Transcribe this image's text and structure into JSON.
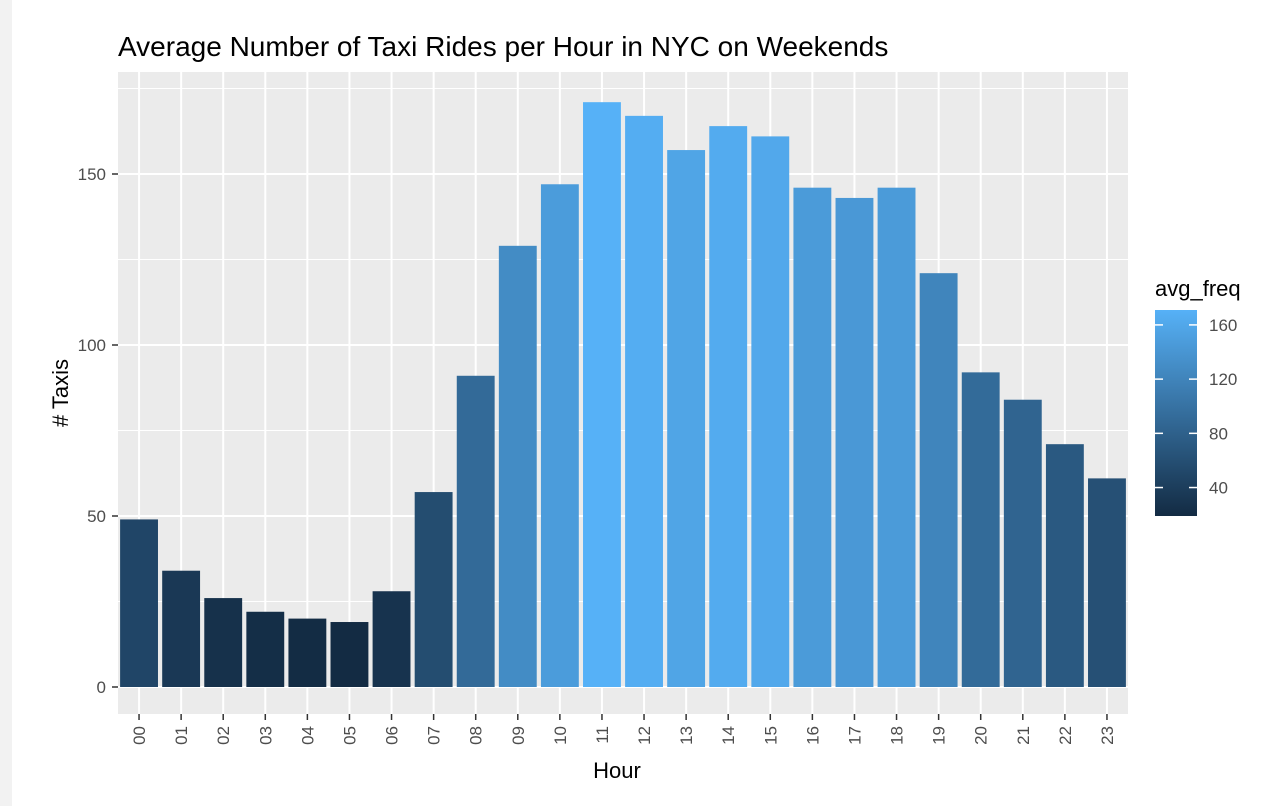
{
  "chart_data": {
    "type": "bar",
    "title": "Average Number of Taxi Rides per Hour in NYC on Weekends",
    "xlabel": "Hour",
    "ylabel": "# Taxis",
    "categories": [
      "00",
      "01",
      "02",
      "03",
      "04",
      "05",
      "06",
      "07",
      "08",
      "09",
      "10",
      "11",
      "12",
      "13",
      "14",
      "15",
      "16",
      "17",
      "18",
      "19",
      "20",
      "21",
      "22",
      "23"
    ],
    "values": [
      49,
      34,
      26,
      22,
      20,
      19,
      28,
      57,
      91,
      129,
      147,
      171,
      167,
      157,
      164,
      161,
      146,
      143,
      146,
      121,
      92,
      84,
      71,
      61
    ],
    "ylim": [
      0,
      175
    ],
    "yticks": [
      0,
      50,
      100,
      150
    ],
    "ytick_labels": [
      "0",
      "50",
      "100",
      "150"
    ],
    "grid": true,
    "x_tick_rotation": "vertical",
    "legend": {
      "title": "avg_freq",
      "placement": "right",
      "type": "colorbar",
      "range": [
        19,
        171
      ],
      "ticks": [
        40,
        80,
        120,
        160
      ],
      "tick_labels": [
        "40",
        "80",
        "120",
        "160"
      ],
      "color_low": "#132b43",
      "color_high": "#56b1f7"
    },
    "colors": {
      "panel_background": "#ebebeb",
      "grid_major": "#ffffff",
      "tick_text": "#4d4d4d"
    }
  }
}
